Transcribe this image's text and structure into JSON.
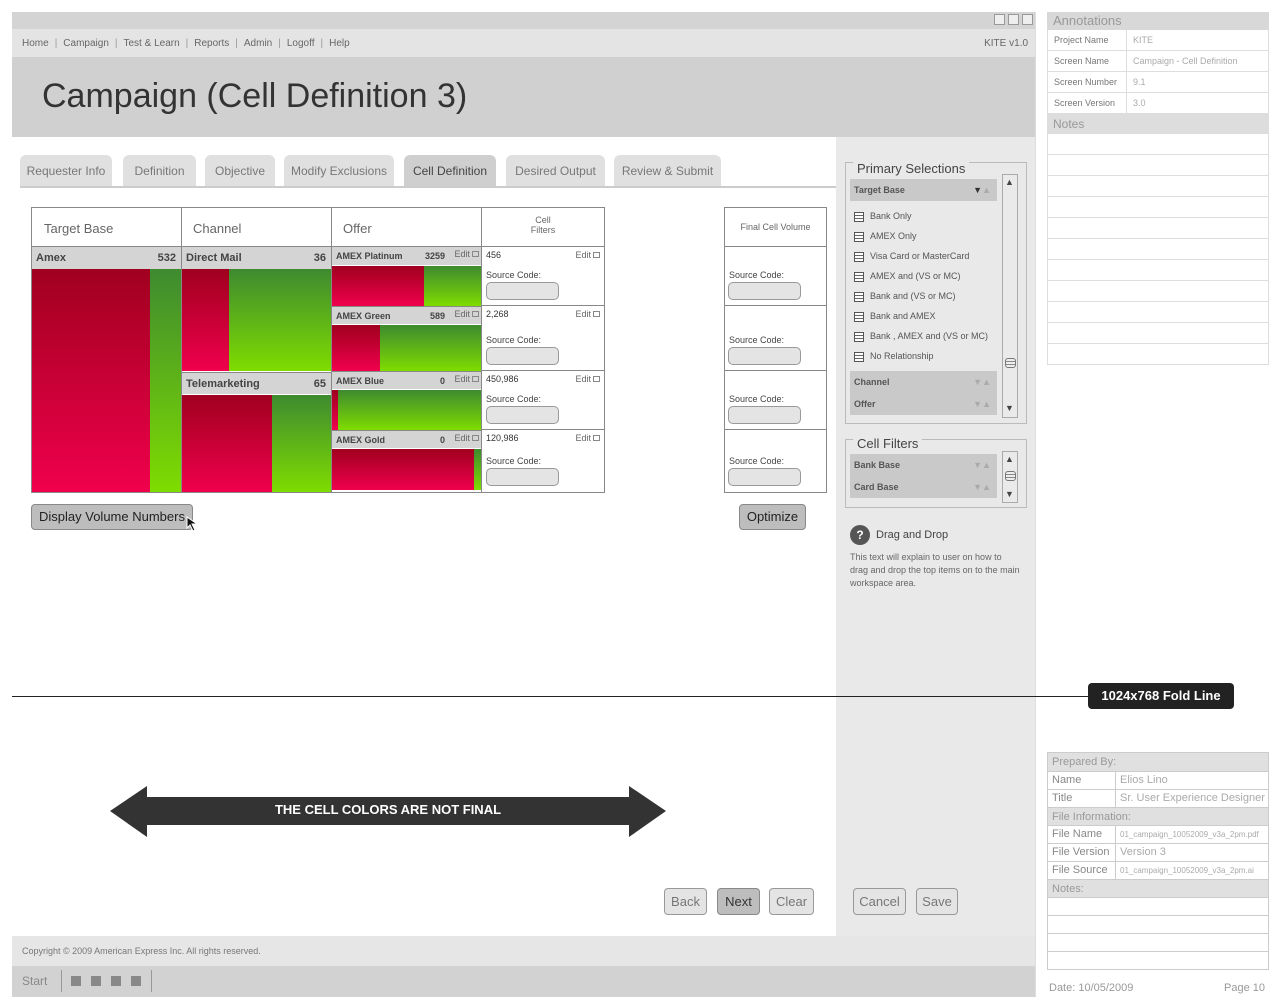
{
  "nav": {
    "links": [
      "Home",
      "Campaign",
      "Test & Learn",
      "Reports",
      "Admin",
      "Logoff",
      "Help"
    ],
    "version": "KITE v1.0"
  },
  "page_title": "Campaign (Cell Definition 3)",
  "tabs": [
    "Requester Info",
    "Definition",
    "Objective",
    "Modify Exclusions",
    "Cell Definition",
    "Desired Output",
    "Review & Submit"
  ],
  "active_tab": "Cell Definition",
  "grid": {
    "headers": {
      "target_base": "Target Base",
      "channel": "Channel",
      "offer": "Offer",
      "cell_filters_1": "Cell",
      "cell_filters_2": "Filters",
      "final_cell_volume": "Final Cell Volume"
    },
    "target_base": {
      "name": "Amex",
      "count": "532"
    },
    "channels": [
      {
        "name": "Direct Mail",
        "count": "36"
      },
      {
        "name": "Telemarketing",
        "count": "65"
      }
    ],
    "offers": [
      {
        "name": "AMEX Platinum",
        "count": "3259",
        "edit": "Edit",
        "filter_value": "456",
        "filter_edit": "Edit",
        "source_label": "Source Code:",
        "fill_fraction": 0.62
      },
      {
        "name": "AMEX Green",
        "count": "589",
        "edit": "Edit",
        "filter_value": "2,268",
        "filter_edit": "Edit",
        "source_label": "Source Code:",
        "fill_fraction": 0.32
      },
      {
        "name": "AMEX Blue",
        "count": "0",
        "edit": "Edit",
        "filter_value": "450,986",
        "filter_edit": "Edit",
        "source_label": "Source Code:",
        "fill_fraction": 0.04
      },
      {
        "name": "AMEX Gold",
        "count": "0",
        "edit": "Edit",
        "filter_value": "120,986",
        "filter_edit": "Edit",
        "source_label": "Source Code:",
        "fill_fraction": 0.95
      }
    ],
    "final_source_label": "Source Code:"
  },
  "buttons": {
    "display_volume": "Display Volume Numbers",
    "optimize": "Optimize",
    "back": "Back",
    "next": "Next",
    "clear": "Clear",
    "cancel": "Cancel",
    "save": "Save"
  },
  "primary_selections": {
    "title": "Primary Selections",
    "target_base_label": "Target Base",
    "items": [
      "Bank Only",
      "AMEX Only",
      "Visa Card or MasterCard",
      "AMEX and (VS or MC)",
      "Bank and (VS or MC)",
      "Bank and AMEX",
      "Bank , AMEX and (VS or MC)",
      "No Relationship"
    ],
    "channel_label": "Channel",
    "offer_label": "Offer"
  },
  "cell_filters_panel": {
    "title": "Cell Filters",
    "groups": [
      "Bank Base",
      "Card Base"
    ]
  },
  "help": {
    "title": "Drag and Drop",
    "text": "This text will explain to user on how to drag and drop the top items on to the main workspace area."
  },
  "banner": "THE CELL COLORS ARE NOT FINAL",
  "fold_line": "1024x768 Fold Line",
  "footer": {
    "copyright": "Copyright © 2009 American Express Inc. All rights reserved."
  },
  "taskbar": {
    "start": "Start"
  },
  "annotations": {
    "title": "Annotations",
    "rows": [
      {
        "key": "Project Name",
        "value": "KITE"
      },
      {
        "key": "Screen Name",
        "value": "Campaign - Cell Definition"
      },
      {
        "key": "Screen Number",
        "value": "9.1"
      },
      {
        "key": "Screen Version",
        "value": "3.0"
      }
    ],
    "notes_label": "Notes"
  },
  "prepared": {
    "prepared_by": "Prepared By:",
    "name_key": "Name",
    "name_value": "Elios Lino",
    "title_key": "Title",
    "title_value": "Sr. User Experience Designer",
    "file_info": "File Information:",
    "file_name_key": "File Name",
    "file_name_value": "01_campaign_10052009_v3a_2pm.pdf",
    "file_version_key": "File Version",
    "file_version_value": "Version 3",
    "file_source_key": "File Source",
    "file_source_value": "01_campaign_10052009_v3a_2pm.ai",
    "notes_label": "Notes:",
    "date": "Date: 10/05/2009",
    "page": "Page 10"
  },
  "colors": {
    "cell_red": "#f0004c",
    "cell_green": "#7fdc00",
    "fold_badge": "#222222"
  }
}
